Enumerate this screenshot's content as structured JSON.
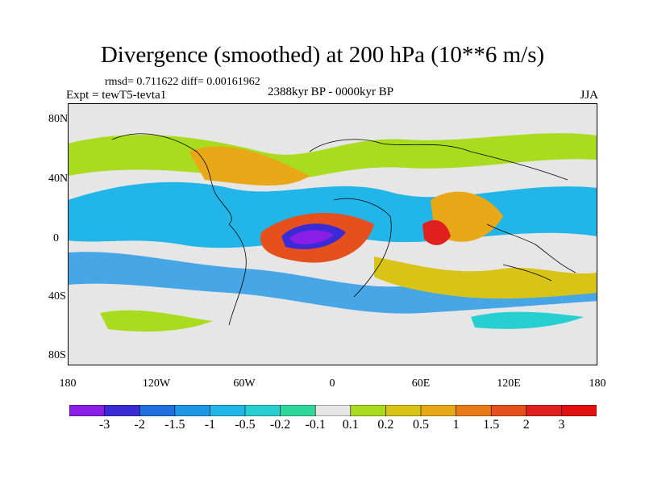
{
  "title": "Divergence (smoothed) at 200 hPa (10**6 m/s)",
  "stats": "rmsd= 0.711622 diff= 0.00161962",
  "experiment": "Expt = tewT5-tevta1",
  "period": "2388kyr BP - 0000kyr BP",
  "season": "JJA",
  "map": {
    "lat_labels": [
      "80N",
      "40N",
      "0",
      "40S",
      "80S"
    ],
    "lon_labels": [
      "180",
      "120W",
      "60W",
      "0",
      "60E",
      "120E",
      "180"
    ]
  },
  "colorbar": {
    "levels": [
      "-3",
      "-2",
      "-1.5",
      "-1",
      "-0.5",
      "-0.2",
      "-0.1",
      "0.1",
      "0.2",
      "0.5",
      "1",
      "1.5",
      "2",
      "3"
    ],
    "colors": [
      "#8a1de6",
      "#3a2bd6",
      "#1f6fe0",
      "#1e96e6",
      "#21b5e8",
      "#27cfd0",
      "#2fd89a",
      "#e6e6e6",
      "#a9dc1e",
      "#d8c416",
      "#e8a818",
      "#e97a18",
      "#e6501c",
      "#e01f1f",
      "#e01010"
    ]
  },
  "icons": {
    "coastline": "coastline-icon"
  }
}
